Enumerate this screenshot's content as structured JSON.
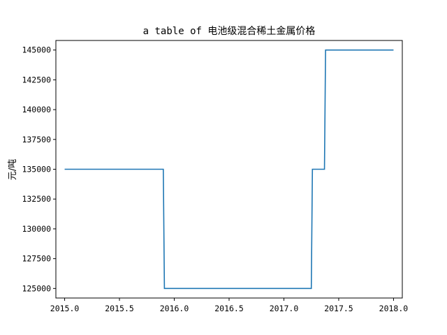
{
  "chart_data": {
    "type": "line",
    "title": "a table of 电池级混合稀土金属价格",
    "xlabel": "",
    "ylabel": "元/吨",
    "xlim": [
      2014.92,
      2018.08
    ],
    "ylim": [
      124200,
      145800
    ],
    "xticks": [
      2015.0,
      2015.5,
      2016.0,
      2016.5,
      2017.0,
      2017.5,
      2018.0
    ],
    "xtick_labels": [
      "2015.0",
      "2015.5",
      "2016.0",
      "2016.5",
      "2017.0",
      "2017.5",
      "2018.0"
    ],
    "yticks": [
      125000,
      127500,
      130000,
      132500,
      135000,
      137500,
      140000,
      142500,
      145000
    ],
    "ytick_labels": [
      "125000",
      "127500",
      "130000",
      "132500",
      "135000",
      "137500",
      "140000",
      "142500",
      "145000"
    ],
    "grid": false,
    "legend": "none",
    "series": [
      {
        "color": "#1f77b4",
        "x": [
          2015.0,
          2015.9,
          2015.91,
          2017.25,
          2017.26,
          2017.37,
          2017.38,
          2018.0
        ],
        "y": [
          135000,
          135000,
          125000,
          125000,
          135000,
          135000,
          145000,
          145000
        ]
      }
    ]
  }
}
